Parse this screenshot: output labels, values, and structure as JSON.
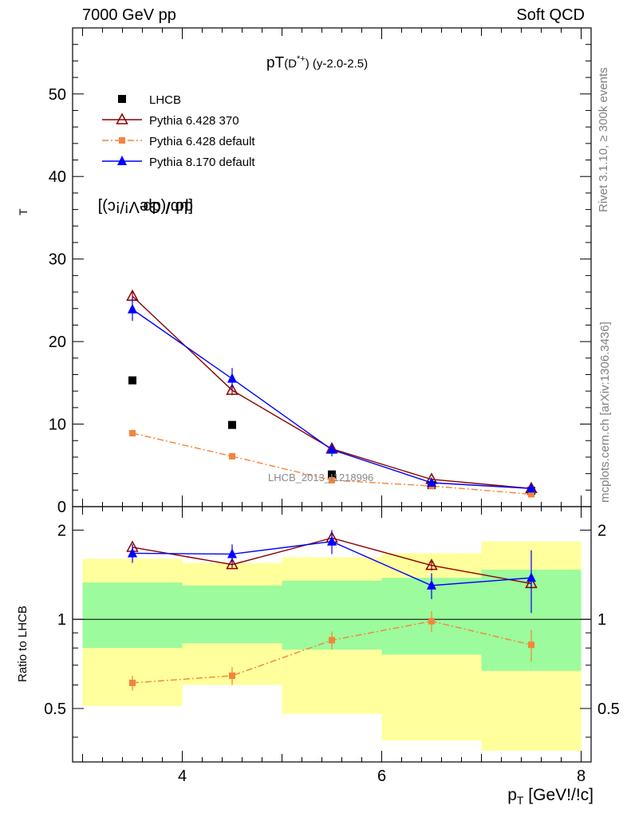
{
  "labels": {
    "top_left": "7000 GeV pp",
    "top_right": "Soft QCD",
    "title_main": "pT",
    "title_particle": "(D",
    "title_sup": "*+",
    "title_tail": ") (y-2.0-2.5)",
    "y_label_main": "dσ / dp",
    "y_label_main_sub": "T",
    "y_label_main_units": " [μb/(GeV!/!c)]",
    "y_label_ratio": "Ratio to LHCB",
    "x_label": "p",
    "x_label_sub": "T",
    "x_label_units": " [GeV!/!c]",
    "side_rivet": "Rivet 3.1.10, ≥ 300k events",
    "side_mcplots": "mcplots.cern.ch [arXiv:1306.3436]",
    "watermark": "LHCB_2013_I1218996"
  },
  "colors": {
    "lhcb": "#000000",
    "py6_370": "#8b0000",
    "py6_default": "#f4843b",
    "py8_default": "#0000ff",
    "band_green": "#9cfb9c",
    "band_yellow": "#ffff9c"
  },
  "chart_data": {
    "type": "scatter",
    "x_domain": [
      2.9,
      8.1
    ],
    "main": {
      "ylim": [
        0,
        58
      ],
      "yticks": [
        0,
        10,
        20,
        30,
        40,
        50
      ],
      "xticks": [
        4,
        6,
        8
      ]
    },
    "ratio": {
      "ylim": [
        0.33,
        2.4
      ],
      "yticks": [
        0.5,
        1,
        2
      ],
      "reference": 1
    },
    "x": [
      3.5,
      4.5,
      5.5,
      6.5,
      7.5
    ],
    "x_bins": [
      [
        3,
        4
      ],
      [
        4,
        5
      ],
      [
        5,
        6
      ],
      [
        6,
        7
      ],
      [
        7,
        8
      ]
    ],
    "series": [
      {
        "name": "LHCB",
        "marker": "square",
        "y": [
          15.3,
          9.9,
          3.9,
          2.6,
          1.9
        ],
        "ratio": [
          1,
          1,
          1,
          1,
          1
        ],
        "band_1sigma": [
          [
            0.8,
            1.33
          ],
          [
            0.83,
            1.3
          ],
          [
            0.79,
            1.35
          ],
          [
            0.76,
            1.38
          ],
          [
            0.67,
            1.47
          ]
        ],
        "band_2sigma": [
          [
            0.51,
            1.6
          ],
          [
            0.6,
            1.55
          ],
          [
            0.48,
            1.62
          ],
          [
            0.39,
            1.67
          ],
          [
            0.36,
            1.83
          ]
        ]
      },
      {
        "name": "Pythia 6.428 370",
        "marker": "triangle-open",
        "y": [
          25.5,
          14.1,
          7.0,
          3.3,
          2.2
        ],
        "y_err": [
          0.7,
          0.6,
          0.4,
          0.2,
          0.2
        ],
        "ratio": [
          1.75,
          1.53,
          1.88,
          1.52,
          1.32
        ],
        "ratio_err": [
          0.04,
          0.04,
          0.06,
          0.06,
          0.05
        ]
      },
      {
        "name": "Pythia 6.428 default",
        "marker": "square-small",
        "y": [
          8.9,
          6.1,
          3.2,
          2.5,
          1.5
        ],
        "y_err": [
          0.4,
          0.3,
          0.2,
          0.2,
          0.15
        ],
        "ratio": [
          0.61,
          0.645,
          0.85,
          0.985,
          0.82
        ],
        "ratio_err": [
          0.035,
          0.045,
          0.06,
          0.08,
          0.1
        ]
      },
      {
        "name": "Pythia 8.170 default",
        "marker": "triangle-filled",
        "y": [
          23.9,
          15.5,
          6.9,
          2.9,
          2.2
        ],
        "y_err": [
          1.4,
          1.3,
          0.8,
          0.4,
          0.5
        ],
        "ratio": [
          1.67,
          1.66,
          1.83,
          1.3,
          1.38
        ],
        "ratio_err": [
          0.12,
          0.13,
          0.17,
          0.13,
          0.33
        ]
      }
    ]
  }
}
